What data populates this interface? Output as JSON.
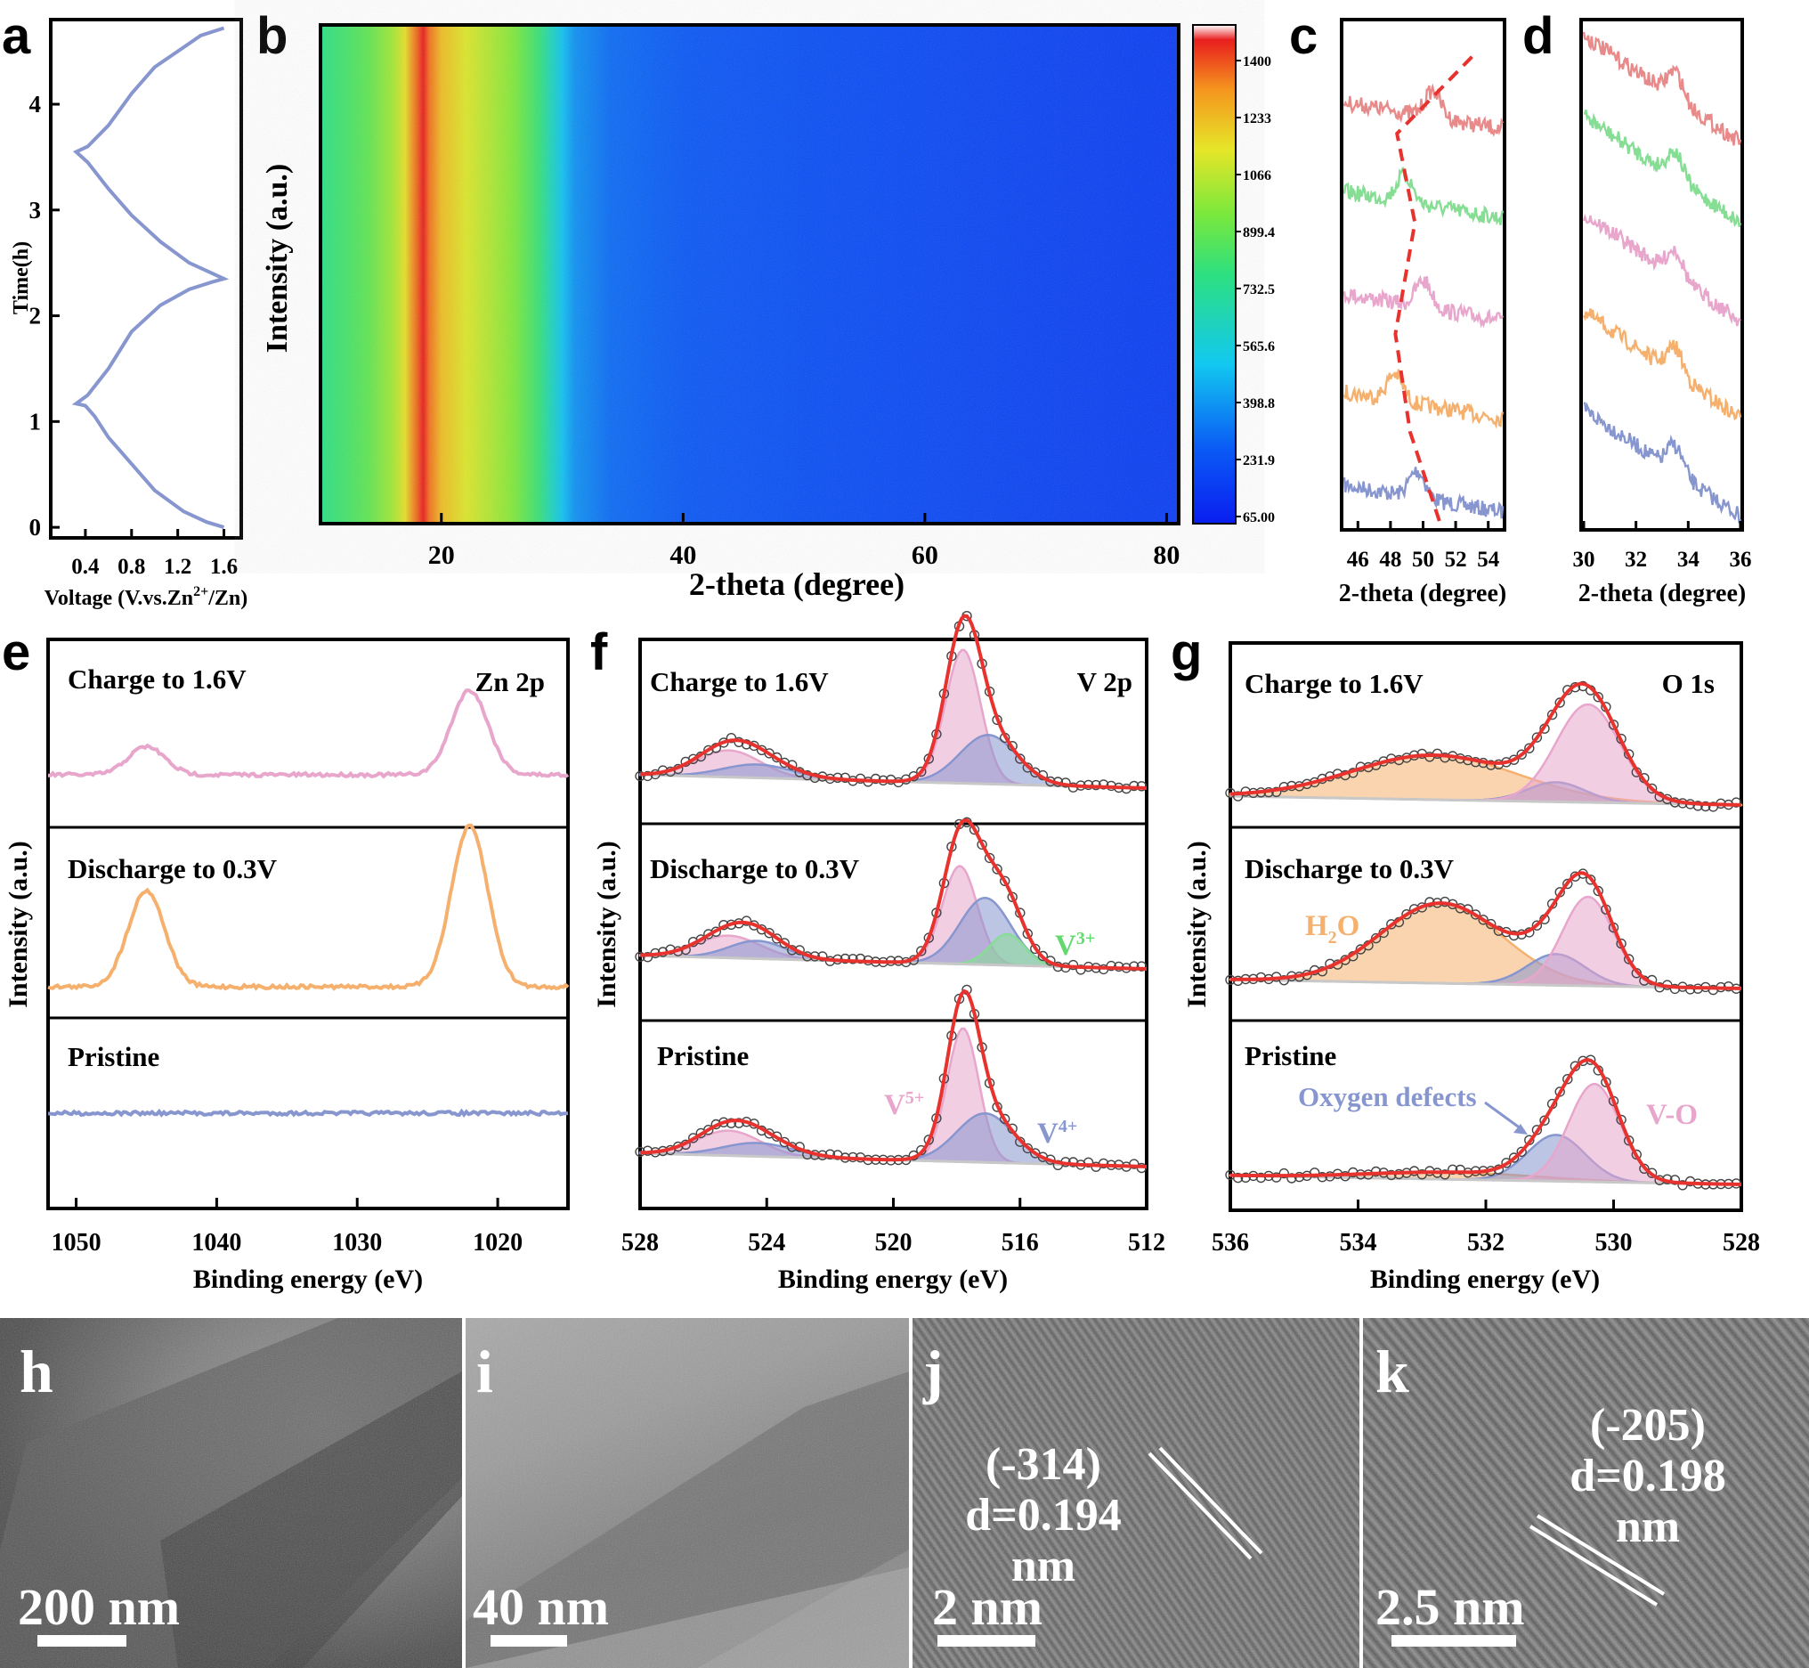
{
  "panel_labels": [
    "a",
    "b",
    "c",
    "d",
    "e",
    "f",
    "g",
    "h",
    "i",
    "j",
    "k"
  ],
  "colors": {
    "frame": "#000000",
    "blue": "#8796cf",
    "pink": "#e8a6cc",
    "orange": "#f5b06e",
    "green": "#86dd94",
    "salmon": "#e88a8a",
    "red": "#e8322e",
    "gray": "#c8c8c8",
    "white": "#ffffff"
  },
  "chart_data": [
    {
      "id": "a",
      "type": "line",
      "xlabel": "Voltage (V.vs.Zn²⁺/Zn)",
      "xlabel_parts": [
        "Voltage (V.vs.Zn",
        "2+",
        "/Zn)"
      ],
      "ylabel": "Time(h)",
      "xticks": [
        "0.4",
        "0.8",
        "1.2",
        "1.6"
      ],
      "xlim": [
        0.1,
        1.75
      ],
      "yticks": [
        "0",
        "1",
        "2",
        "3",
        "4"
      ],
      "ylim": [
        -0.1,
        4.8
      ],
      "series": [
        {
          "x": [
            1.6,
            1.45,
            1.25,
            1.0,
            0.8,
            0.6,
            0.48,
            0.4,
            0.32,
            0.42,
            0.6,
            0.8,
            1.05,
            1.3,
            1.5,
            1.6,
            1.5,
            1.3,
            1.05,
            0.8,
            0.6,
            0.42,
            0.32,
            0.42,
            0.6,
            0.8,
            1.0,
            1.2,
            1.4,
            1.6
          ],
          "y": [
            0.0,
            0.05,
            0.15,
            0.35,
            0.6,
            0.85,
            1.05,
            1.15,
            1.17,
            1.25,
            1.5,
            1.85,
            2.1,
            2.25,
            2.32,
            2.35,
            2.4,
            2.5,
            2.7,
            2.95,
            3.2,
            3.45,
            3.55,
            3.6,
            3.8,
            4.1,
            4.35,
            4.5,
            4.65,
            4.72
          ]
        }
      ]
    },
    {
      "id": "b",
      "type": "heatmap",
      "xlabel": "2-theta (degree)",
      "ylabel": "Intensity (a.u.)",
      "xticks": [
        "20",
        "40",
        "60",
        "80"
      ],
      "xlim": [
        10,
        81
      ],
      "colorbar_ticks": [
        "1400",
        "1233",
        "1066",
        "899.4",
        "732.5",
        "565.6",
        "398.8",
        "231.9",
        "65.00"
      ],
      "color_range": [
        65,
        1400
      ],
      "intensity_profile": {
        "x": [
          10,
          12,
          14,
          16,
          17,
          18,
          18.5,
          19,
          20,
          22,
          24,
          26,
          28,
          29,
          30,
          31,
          34,
          40,
          50,
          60,
          70,
          81
        ],
        "v": [
          720,
          780,
          840,
          960,
          1080,
          1300,
          1400,
          1280,
          1150,
          1050,
          980,
          900,
          760,
          620,
          480,
          380,
          300,
          260,
          230,
          210,
          190,
          170
        ]
      }
    },
    {
      "id": "c",
      "type": "line",
      "xlabel": "2-theta (degree)",
      "xticks": [
        "46",
        "48",
        "50",
        "52",
        "54"
      ],
      "xlim": [
        45,
        55
      ],
      "series": [
        {
          "name": "blue"
        },
        {
          "name": "orange"
        },
        {
          "name": "pink"
        },
        {
          "name": "green"
        },
        {
          "name": "salmon"
        }
      ],
      "peak_positions": [
        49.6,
        48.2,
        50.0,
        48.8,
        50.6
      ]
    },
    {
      "id": "d",
      "type": "line",
      "xlabel": "2-theta (degree)",
      "xticks": [
        "30",
        "32",
        "34",
        "36"
      ],
      "xlim": [
        30,
        36
      ],
      "series": [
        {
          "name": "blue"
        },
        {
          "name": "orange"
        },
        {
          "name": "pink"
        },
        {
          "name": "green"
        },
        {
          "name": "salmon"
        }
      ],
      "peak_position": 33.5
    },
    {
      "id": "e",
      "type": "line",
      "title": "Zn 2p",
      "xlabel": "Binding energy (eV)",
      "ylabel": "Intensity (a.u.)",
      "xticks": [
        "1050",
        "1040",
        "1030",
        "1020"
      ],
      "xlim": [
        1052,
        1015
      ],
      "subplots": [
        {
          "label": "Charge to 1.6V",
          "peaks": [
            {
              "x": 1045,
              "h": 0.15
            },
            {
              "x": 1022,
              "h": 0.45
            }
          ]
        },
        {
          "label": "Discharge to 0.3V",
          "peaks": [
            {
              "x": 1045,
              "h": 0.6
            },
            {
              "x": 1022,
              "h": 1.0
            }
          ]
        },
        {
          "label": "Pristine",
          "peaks": []
        }
      ]
    },
    {
      "id": "f",
      "type": "line",
      "title": "V 2p",
      "xlabel": "Binding energy (eV)",
      "ylabel": "Intensity (a.u.)",
      "xticks": [
        "528",
        "524",
        "520",
        "516",
        "512"
      ],
      "xlim": [
        528,
        512
      ],
      "subplots": [
        {
          "label": "Charge to 1.6V",
          "components": [
            "V5+",
            "V4+"
          ]
        },
        {
          "label": "Discharge to 0.3V",
          "components": [
            "V5+",
            "V4+",
            "V3+"
          ]
        },
        {
          "label": "Pristine",
          "components": [
            "V5+",
            "V4+"
          ]
        }
      ],
      "annotations": {
        "v3": [
          "V",
          "3+"
        ],
        "v5": [
          "V",
          "5+"
        ],
        "v4": [
          "V",
          "4+"
        ]
      }
    },
    {
      "id": "g",
      "type": "line",
      "title": "O 1s",
      "xlabel": "Binding energy (eV)",
      "ylabel": "Intensity (a.u.)",
      "xticks": [
        "536",
        "534",
        "532",
        "530",
        "528"
      ],
      "xlim": [
        536,
        528
      ],
      "subplots": [
        {
          "label": "Charge to 1.6V"
        },
        {
          "label": "Discharge to 0.3V"
        },
        {
          "label": "Pristine"
        }
      ],
      "annotations": {
        "h2o": [
          "H",
          "2",
          "O"
        ],
        "defects": "Oxygen defects",
        "vo": "V-O"
      }
    }
  ],
  "tem": {
    "h": {
      "scale": "200 nm"
    },
    "i": {
      "scale": "40 nm"
    },
    "j": {
      "scale": "2 nm",
      "plane": "(-314)",
      "d": "d=0.194 nm"
    },
    "k": {
      "scale": "2.5 nm",
      "plane": "(-205)",
      "d": "d=0.198 nm"
    }
  }
}
